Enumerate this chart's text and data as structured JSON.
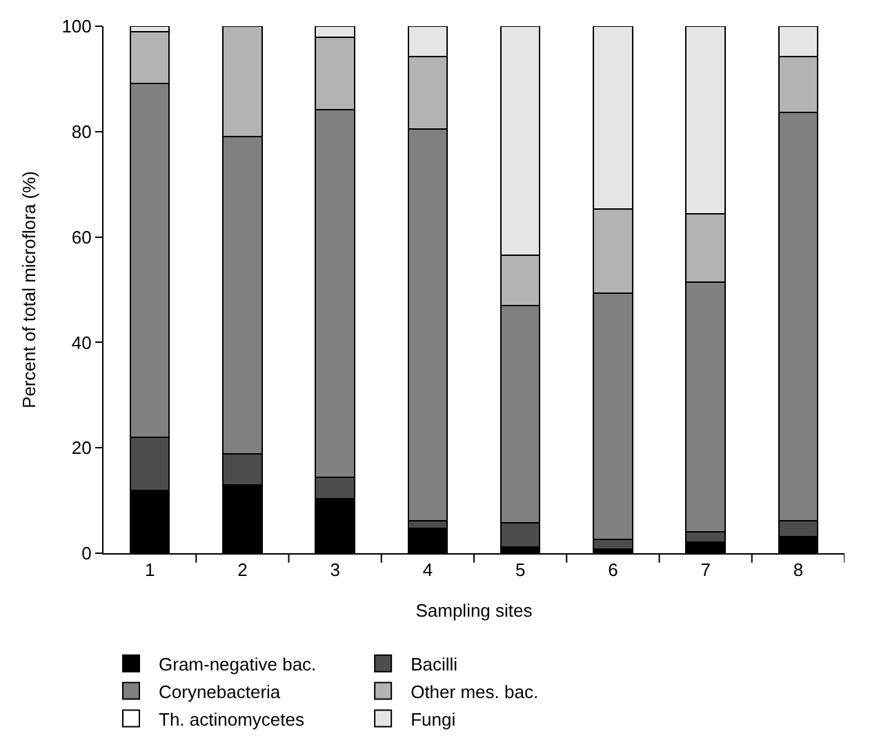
{
  "chart_data": {
    "type": "bar",
    "stacked": true,
    "xlabel": "Sampling sites",
    "ylabel": "Percent of total microflora (%)",
    "categories": [
      "1",
      "2",
      "3",
      "4",
      "5",
      "6",
      "7",
      "8"
    ],
    "series": [
      {
        "name": "Gram-negative bac.",
        "color": "#000000",
        "values": [
          11.9,
          13.0,
          10.3,
          4.7,
          1.2,
          0.8,
          2.1,
          3.2
        ]
      },
      {
        "name": "Bacilli",
        "color": "#4d4d4d",
        "values": [
          10.1,
          5.9,
          4.1,
          1.5,
          4.5,
          1.8,
          2.0,
          2.9
        ]
      },
      {
        "name": "Corynebacteria",
        "color": "#808080",
        "values": [
          67.2,
          60.2,
          69.8,
          74.3,
          41.3,
          46.8,
          47.4,
          77.6
        ]
      },
      {
        "name": "Other mes. bac.",
        "color": "#b3b3b3",
        "values": [
          9.7,
          20.9,
          13.7,
          13.8,
          9.6,
          15.9,
          12.9,
          10.6
        ]
      },
      {
        "name": "Th. actinomycetes",
        "color": "#ffffff",
        "values": [
          null,
          null,
          null,
          null,
          null,
          null,
          null,
          null
        ]
      },
      {
        "name": "Fungi",
        "color": "#e5e5e5",
        "values": [
          1.1,
          null,
          2.1,
          5.7,
          43.4,
          34.7,
          35.6,
          5.7
        ]
      }
    ],
    "ylim": [
      0,
      100
    ],
    "yticks": [
      0,
      20,
      40,
      60,
      80,
      100
    ],
    "legend": "bottom"
  }
}
